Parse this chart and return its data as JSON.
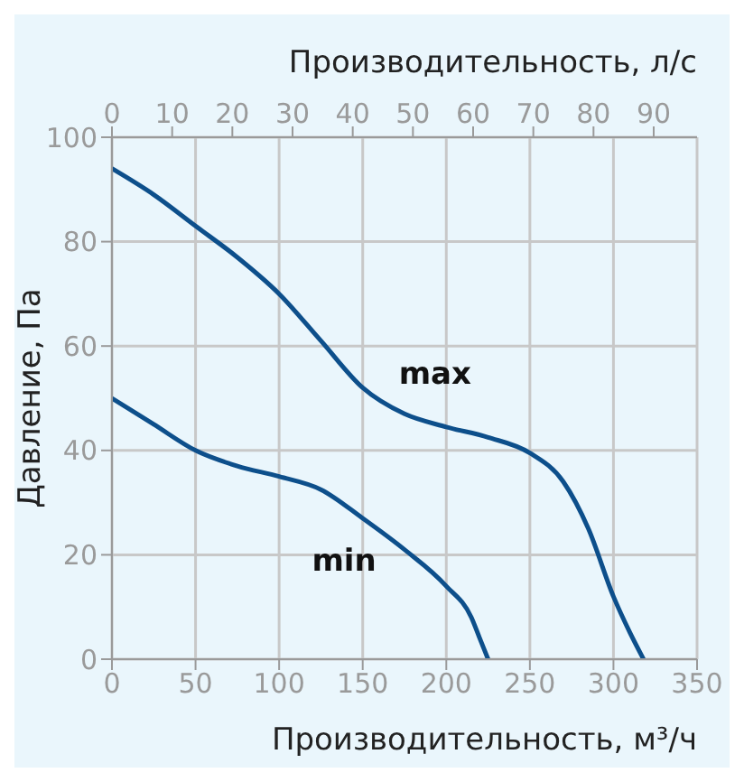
{
  "chart_data": {
    "type": "line",
    "xlabel": "Производительность, м³/ч",
    "x2label": "Производительность, л/с",
    "ylabel": "Давление, Па",
    "xlim": [
      0,
      350
    ],
    "xticks": [
      0,
      50,
      100,
      150,
      200,
      250,
      300,
      350
    ],
    "x2lim": [
      0,
      97.2
    ],
    "x2ticks": [
      0,
      10,
      20,
      30,
      40,
      50,
      60,
      70,
      80,
      90
    ],
    "ylim": [
      0,
      100
    ],
    "yticks": [
      0,
      20,
      40,
      60,
      80,
      100
    ],
    "grid": true,
    "legend": false,
    "marker": "none",
    "line_style": "solid",
    "series": [
      {
        "name": "max",
        "color": "#0d4f8b",
        "x": [
          0,
          25,
          50,
          75,
          100,
          125,
          150,
          175,
          200,
          225,
          250,
          270,
          285,
          300,
          310,
          318
        ],
        "values": [
          94,
          89,
          83,
          77,
          70,
          61,
          52,
          47,
          44.5,
          42.5,
          39.5,
          34,
          25,
          12,
          5,
          0
        ]
      },
      {
        "name": "min",
        "color": "#0d4f8b",
        "x": [
          0,
          25,
          50,
          75,
          100,
          125,
          150,
          175,
          200,
          215,
          220,
          225
        ],
        "values": [
          50,
          45,
          40,
          37,
          35,
          32.5,
          27,
          21,
          14,
          8,
          4,
          0
        ]
      }
    ]
  }
}
